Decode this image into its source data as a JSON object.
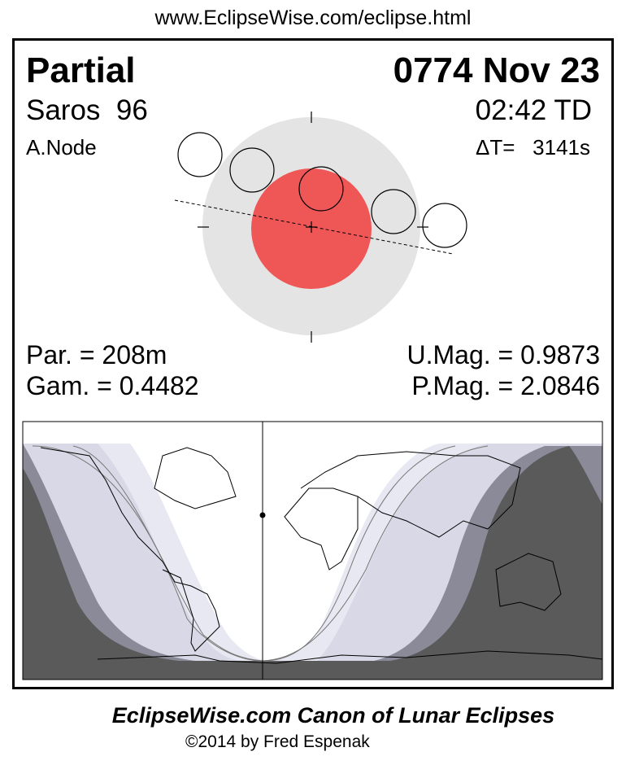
{
  "header": {
    "url": "www.EclipseWise.com/eclipse.html"
  },
  "eclipse": {
    "type": "Partial",
    "date": "0774 Nov 23",
    "saros": "Saros  96",
    "time": "02:42 TD",
    "node": "A.Node",
    "delta_t": "ΔT=   3141s",
    "par": "Par. = 208m",
    "gam": "Gam. = 0.4482",
    "umag": "U.Mag. = 0.9873",
    "pmag": "P.Mag. = 2.0846"
  },
  "colors": {
    "umbra": "#ef5757",
    "penumbra": "#e4e4e4",
    "map_dark": "#5a5a5a",
    "map_mid": "#8a8a98",
    "map_light": "#d8d8e6",
    "map_lightest": "#e8e8f2"
  },
  "footer": {
    "title": "EclipseWise.com Canon of Lunar Eclipses",
    "copyright": "©2014 by Fred Espenak"
  }
}
